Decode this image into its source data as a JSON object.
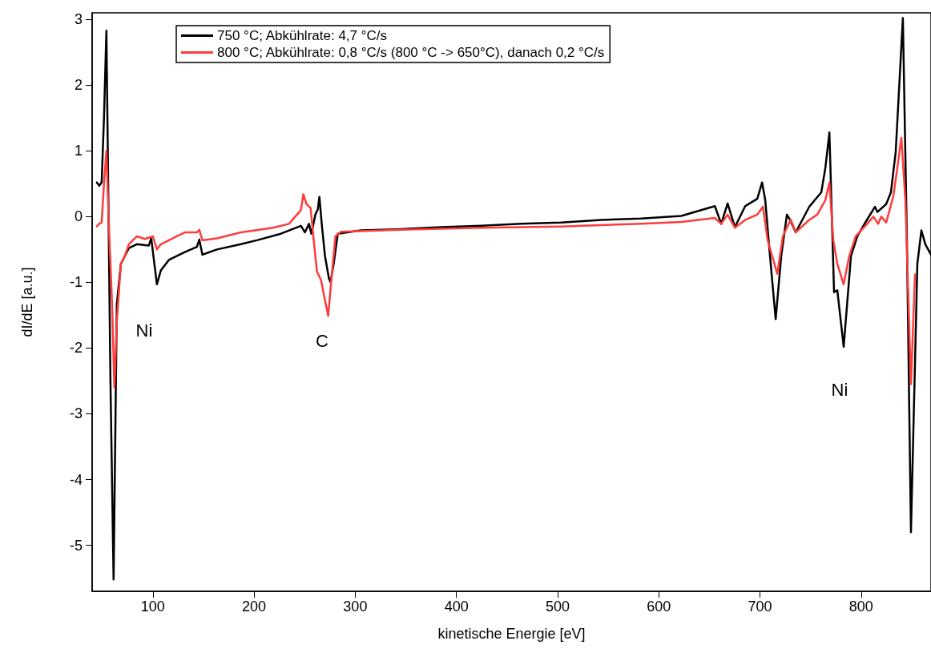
{
  "chart_data": {
    "type": "line",
    "xlabel": "kinetische Energie [eV]",
    "ylabel": "dI/dE [a.u.]",
    "xlim": [
      40,
      869
    ],
    "xticks": [
      100,
      200,
      300,
      400,
      500,
      600,
      700,
      800
    ],
    "ylim": [
      -5.7,
      3.1
    ],
    "yticks": [
      -5,
      -4,
      -3,
      -2,
      -1,
      0,
      1,
      2,
      3
    ],
    "grid": false,
    "legend": "top left",
    "marker": "none",
    "line_style": "solid",
    "annotations": [
      "Ni",
      "C",
      "Ni"
    ],
    "series": [
      {
        "name": "750 °C; Abkühlrate: 4,7 °C/s",
        "color": "#000000",
        "x": [
          44.6,
          47.0,
          49.4,
          51.7,
          54.1,
          58.1,
          61.2,
          64.4,
          68.4,
          76.3,
          84.2,
          96.0,
          98.4,
          104.0,
          107.9,
          115.8,
          131.6,
          143.5,
          145.9,
          149.0,
          163.3,
          187.0,
          202.8,
          226.5,
          246.4,
          250.3,
          254.3,
          256.6,
          260.6,
          263.0,
          264.6,
          266.9,
          270.1,
          274.0,
          275.6,
          278.7,
          282.8,
          305.7,
          345.3,
          384.8,
          424.4,
          464.0,
          503.5,
          543.1,
          582.6,
          622.2,
          655.4,
          661.7,
          668.0,
          675.2,
          685.4,
          697.3,
          702.1,
          705.2,
          709.2,
          715.5,
          721.0,
          726.6,
          729.7,
          735.3,
          748.7,
          760.6,
          764.6,
          768.6,
          773.2,
          776.4,
          782.7,
          789.9,
          796.2,
          804.1,
          813.6,
          816.0,
          824.7,
          829.4,
          834.1,
          841.2,
          845.2,
          849.2,
          855.5,
          859.5,
          863.4,
          869.0
        ],
        "values": [
          0.52,
          0.47,
          0.52,
          1.5,
          2.83,
          -2.5,
          -5.52,
          -1.33,
          -0.72,
          -0.48,
          -0.42,
          -0.44,
          -0.33,
          -1.03,
          -0.82,
          -0.66,
          -0.54,
          -0.46,
          -0.35,
          -0.58,
          -0.5,
          -0.42,
          -0.36,
          -0.26,
          -0.14,
          -0.24,
          -0.11,
          -0.26,
          0.03,
          0.11,
          0.3,
          -0.11,
          -0.6,
          -0.94,
          -1.0,
          -0.72,
          -0.26,
          -0.21,
          -0.19,
          -0.16,
          -0.14,
          -0.11,
          -0.09,
          -0.05,
          -0.03,
          0.01,
          0.16,
          -0.11,
          0.2,
          -0.16,
          0.16,
          0.27,
          0.52,
          0.25,
          -0.48,
          -1.56,
          -0.6,
          0.03,
          -0.05,
          -0.24,
          0.15,
          0.37,
          0.74,
          1.28,
          -1.15,
          -1.12,
          -1.98,
          -0.6,
          -0.3,
          -0.09,
          0.15,
          0.07,
          0.19,
          0.37,
          0.98,
          3.02,
          -0.36,
          -4.8,
          -0.72,
          -0.21,
          -0.42,
          -0.58
        ]
      },
      {
        "name": "800 °C; Abkühlrate: 0,8 °C/s (800 °C -> 650°C), danach 0,2 °C/s",
        "color": "#ff3b3b",
        "x": [
          44.6,
          47.0,
          49.4,
          51.7,
          54.1,
          56.5,
          59.7,
          62.0,
          64.4,
          68.4,
          72.3,
          76.3,
          84.2,
          92.1,
          100.0,
          104.0,
          107.9,
          115.8,
          123.7,
          131.6,
          143.5,
          145.9,
          149.0,
          163.3,
          187.0,
          218.7,
          234.5,
          246.4,
          248.7,
          251.9,
          255.9,
          258.2,
          262.2,
          266.1,
          270.1,
          273.3,
          276.4,
          280.4,
          285.8,
          345.3,
          424.4,
          503.5,
          582.6,
          622.2,
          655.4,
          661.7,
          668.0,
          675.2,
          685.4,
          697.3,
          702.9,
          707.6,
          717.1,
          722.6,
          727.4,
          730.5,
          735.3,
          748.7,
          756.6,
          764.6,
          768.6,
          772.5,
          776.4,
          782.7,
          788.2,
          794.6,
          804.1,
          812.0,
          816.7,
          819.9,
          824.7,
          831.8,
          835.7,
          839.7,
          843.7,
          849.2,
          853.2
        ],
        "values": [
          -0.15,
          -0.11,
          -0.09,
          0.5,
          1.0,
          -0.1,
          -1.33,
          -2.6,
          -1.6,
          -0.72,
          -0.6,
          -0.42,
          -0.3,
          -0.34,
          -0.3,
          -0.5,
          -0.42,
          -0.36,
          -0.3,
          -0.24,
          -0.24,
          -0.2,
          -0.36,
          -0.33,
          -0.24,
          -0.17,
          -0.11,
          0.1,
          0.34,
          0.19,
          0.13,
          -0.24,
          -0.84,
          -0.96,
          -1.27,
          -1.51,
          -0.96,
          -0.3,
          -0.23,
          -0.2,
          -0.17,
          -0.15,
          -0.11,
          -0.08,
          -0.02,
          -0.11,
          0.03,
          -0.17,
          -0.05,
          0.03,
          0.15,
          -0.36,
          -0.87,
          -0.3,
          -0.14,
          -0.05,
          -0.24,
          -0.05,
          0.03,
          0.25,
          0.52,
          -0.36,
          -0.72,
          -1.03,
          -0.6,
          -0.3,
          -0.14,
          0,
          -0.11,
          0,
          -0.09,
          0.31,
          0.74,
          1.2,
          0.25,
          -2.55,
          -0.88
        ]
      }
    ]
  }
}
